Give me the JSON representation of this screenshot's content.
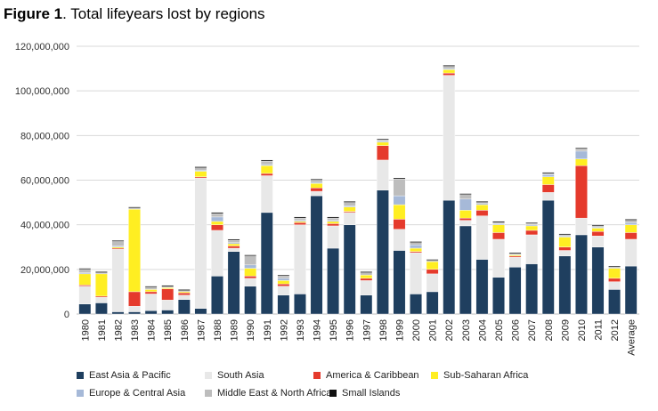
{
  "title": {
    "bold": "Figure 1",
    "rest": ". Total lifeyears lost by regions"
  },
  "chart_data": {
    "type": "bar",
    "stacked": true,
    "ylim": [
      0,
      120000000
    ],
    "yticks": [
      "0",
      "20,000,000",
      "40,000,000",
      "60,000,000",
      "80,000,000",
      "100,000,000",
      "120,000,000"
    ],
    "grid": true,
    "legend_position": "bottom",
    "categories": [
      "1980",
      "1981",
      "1982",
      "1983",
      "1984",
      "1985",
      "1986",
      "1987",
      "1988",
      "1989",
      "1990",
      "1991",
      "1992",
      "1993",
      "1994",
      "1995",
      "1996",
      "1997",
      "1998",
      "1999",
      "2000",
      "2001",
      "2002",
      "2003",
      "2004",
      "2005",
      "2006",
      "2007",
      "2008",
      "2009",
      "2010",
      "2011",
      "2012",
      "Average"
    ],
    "series": [
      {
        "name": "East Asia & Pacific",
        "color": "#1f3f5f",
        "values": [
          4500000,
          5000000,
          1000000,
          1000000,
          1500000,
          1800000,
          6500000,
          2500000,
          17000000,
          28000000,
          12500000,
          45500000,
          8500000,
          9000000,
          53000000,
          29500000,
          40000000,
          8500000,
          55500000,
          28500000,
          9000000,
          10000000,
          51000000,
          39500000,
          24500000,
          16500000,
          21000000,
          22500000,
          51000000,
          26000000,
          35500000,
          30000000,
          11000000,
          21500000
        ]
      },
      {
        "name": "South Asia",
        "color": "#e8e8e8",
        "values": [
          8000000,
          2500000,
          28000000,
          2500000,
          7500000,
          4500000,
          2000000,
          58500000,
          20500000,
          1500000,
          3500000,
          16500000,
          4000000,
          31000000,
          2000000,
          10000000,
          5500000,
          6500000,
          13500000,
          9500000,
          18500000,
          8000000,
          56000000,
          2500000,
          19500000,
          17000000,
          4500000,
          13000000,
          3500000,
          2500000,
          7500000,
          5000000,
          3500000,
          12000000
        ]
      },
      {
        "name": "America & Caribbean",
        "color": "#e53a2c",
        "values": [
          500000,
          500000,
          500000,
          6500000,
          1000000,
          5000000,
          1000000,
          500000,
          2500000,
          1000000,
          1000000,
          1000000,
          1000000,
          1000000,
          1500000,
          1000000,
          500000,
          1000000,
          6500000,
          4500000,
          500000,
          2000000,
          1000000,
          1000000,
          2500000,
          3000000,
          500000,
          2000000,
          3500000,
          1500000,
          23500000,
          2000000,
          1500000,
          3000000
        ]
      },
      {
        "name": "Sub-Saharan Africa",
        "color": "#ffee22",
        "values": [
          5000000,
          10000000,
          500000,
          37000000,
          1000000,
          500000,
          500000,
          2500000,
          1500000,
          1000000,
          3500000,
          3500000,
          1500000,
          500000,
          2000000,
          1000000,
          2000000,
          1500000,
          1500000,
          6500000,
          1500000,
          3500000,
          1500000,
          3500000,
          2500000,
          3500000,
          500000,
          2000000,
          3500000,
          4500000,
          3000000,
          1500000,
          4500000,
          3500000
        ]
      },
      {
        "name": "Europe & Central Asia",
        "color": "#a6b9d8",
        "values": [
          500000,
          0,
          500000,
          0,
          0,
          0,
          0,
          500000,
          2000000,
          500000,
          1500000,
          500000,
          1000000,
          500000,
          500000,
          500000,
          500000,
          0,
          500000,
          4000000,
          1500000,
          0,
          500000,
          5000000,
          500000,
          500000,
          0,
          500000,
          1000000,
          500000,
          3500000,
          500000,
          0,
          1000000
        ]
      },
      {
        "name": "Middle East & North Africa",
        "color": "#bdbdbd",
        "values": [
          1500000,
          500000,
          2000000,
          500000,
          1000000,
          500000,
          500000,
          1000000,
          1500000,
          1000000,
          4000000,
          1500000,
          1000000,
          1000000,
          1000000,
          1000000,
          1500000,
          1000000,
          500000,
          7500000,
          1000000,
          500000,
          1000000,
          2000000,
          500000,
          500000,
          500000,
          500000,
          500000,
          500000,
          1000000,
          500000,
          500000,
          1000000
        ]
      },
      {
        "name": "Small Islands",
        "color": "#111111",
        "values": [
          500000,
          500000,
          500000,
          500000,
          500000,
          500000,
          500000,
          500000,
          500000,
          500000,
          500000,
          500000,
          500000,
          500000,
          500000,
          500000,
          500000,
          500000,
          500000,
          500000,
          500000,
          500000,
          500000,
          500000,
          500000,
          500000,
          500000,
          500000,
          500000,
          500000,
          500000,
          500000,
          500000,
          500000
        ]
      }
    ]
  }
}
